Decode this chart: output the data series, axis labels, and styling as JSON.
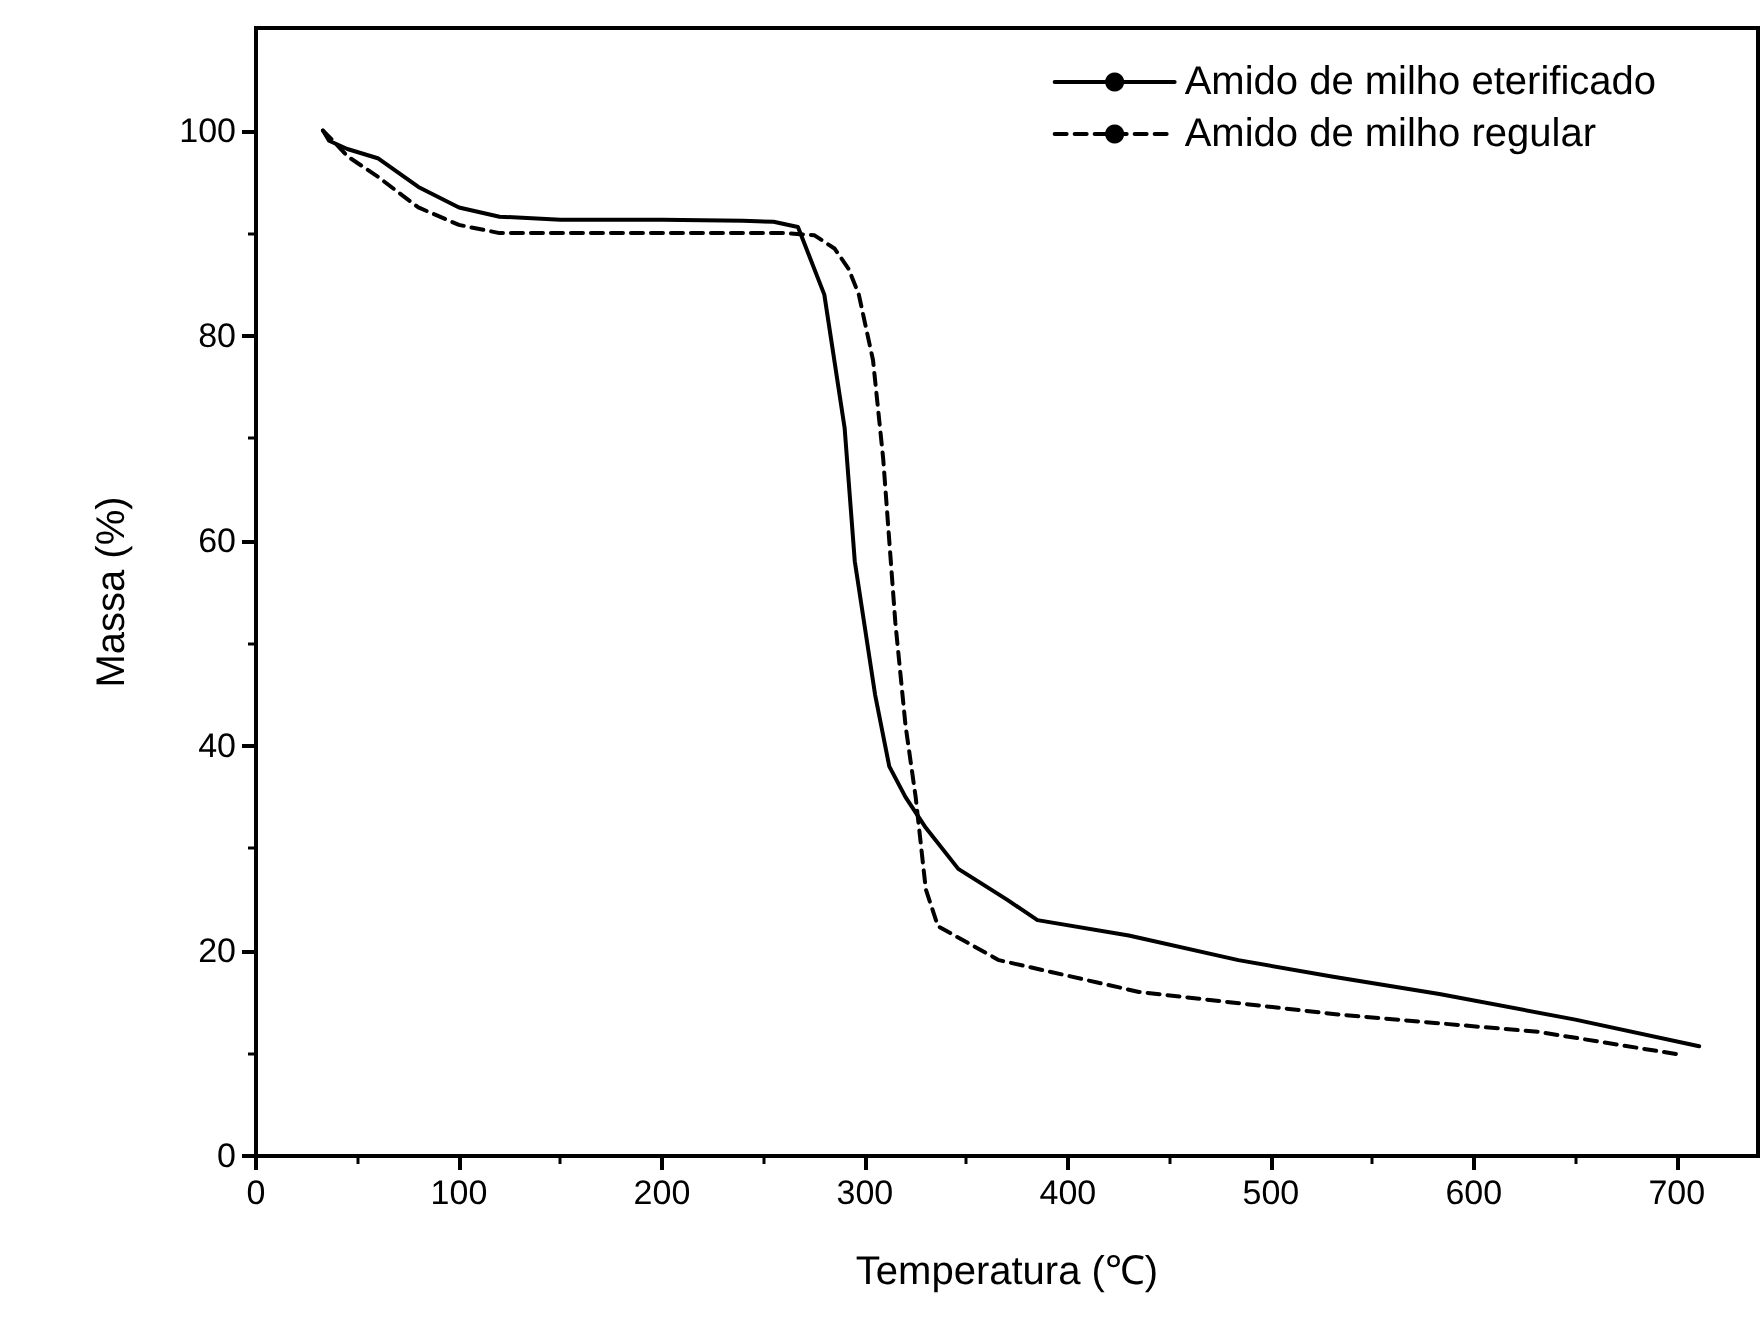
{
  "chart_data": {
    "type": "line",
    "xlabel": "Temperatura (℃)",
    "ylabel": "Massa (%)",
    "xlim": [
      0,
      740
    ],
    "xticks": [
      0,
      100,
      200,
      300,
      400,
      500,
      600,
      700
    ],
    "ylim": [
      0,
      110
    ],
    "yticks": [
      0,
      20,
      40,
      60,
      80,
      100
    ],
    "grid": false,
    "legend": "top right",
    "marker": "none",
    "series": [
      {
        "name": "Amido de milho eterificado",
        "color": "#000000",
        "line_style": "solid",
        "x": [
          33,
          36,
          45,
          60,
          80,
          100,
          120,
          150,
          200,
          240,
          255,
          267,
          280,
          290,
          295,
          305,
          312,
          320,
          330,
          346,
          370,
          385,
          430,
          484,
          530,
          583,
          650,
          711
        ],
        "values": [
          100,
          99,
          98.2,
          97.3,
          94.5,
          92.5,
          91.6,
          91.3,
          91.3,
          91.2,
          91.1,
          90.6,
          84,
          71,
          58,
          45,
          38,
          35,
          32,
          28,
          25,
          23,
          21.5,
          19.1,
          17.5,
          15.8,
          13.3,
          10.7
        ]
      },
      {
        "name": "Amido de milho regular",
        "color": "#000000",
        "line_style": "dashed",
        "x": [
          33,
          38,
          45,
          60,
          80,
          100,
          120,
          200,
          260,
          275,
          285,
          292,
          297,
          304,
          309,
          315,
          320,
          325,
          330,
          336,
          366,
          435,
          533,
          632,
          701
        ],
        "values": [
          100,
          99,
          97.5,
          95.5,
          92.5,
          90.8,
          90,
          90,
          90,
          89.8,
          88.5,
          86.5,
          84,
          77.6,
          68,
          52,
          42,
          35,
          26,
          22.4,
          19.1,
          16,
          13.8,
          12.1,
          9.9
        ]
      }
    ]
  }
}
